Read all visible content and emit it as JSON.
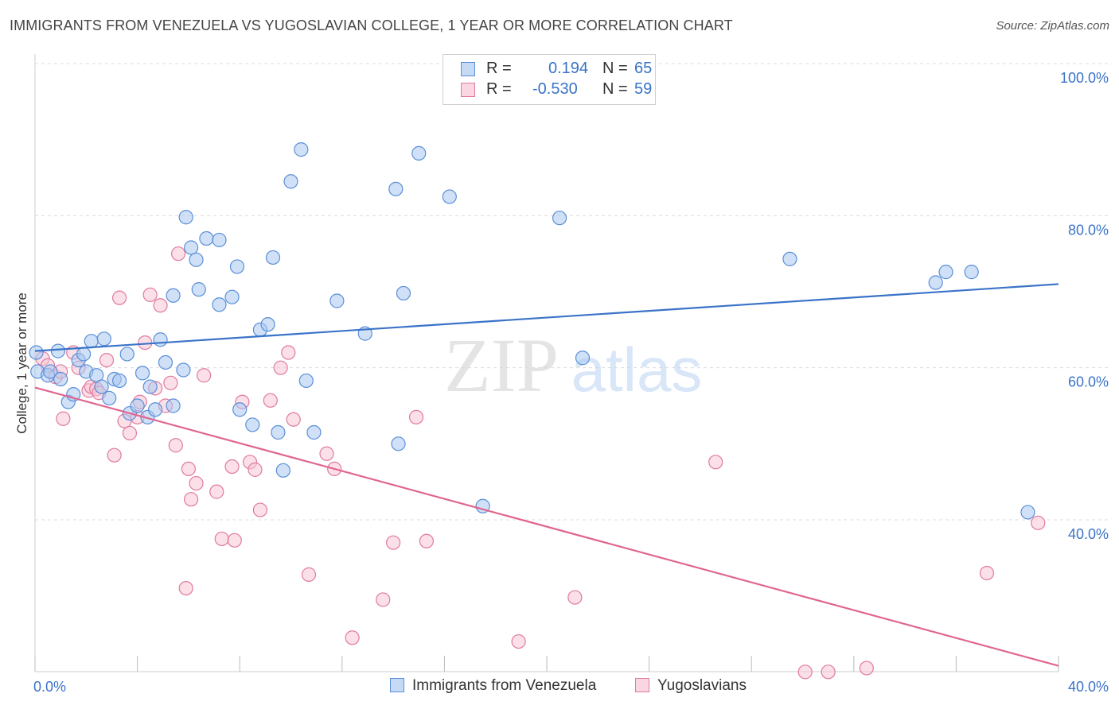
{
  "title": "IMMIGRANTS FROM VENEZUELA VS YUGOSLAVIAN COLLEGE, 1 YEAR OR MORE CORRELATION CHART",
  "source": "Source: ZipAtlas.com",
  "watermark": {
    "zip": "ZIP",
    "atlas": "atlas"
  },
  "legend": {
    "rows": [
      {
        "r_label": "R =",
        "r_value": "0.194",
        "n_label": "N =",
        "n_value": "65",
        "color": "#a9c8f0",
        "border": "#5a8fd8"
      },
      {
        "r_label": "R =",
        "r_value": "-0.530",
        "n_label": "N =",
        "n_value": "59",
        "color": "#f7c6d6",
        "border": "#e07aa0"
      }
    ]
  },
  "chart_data": {
    "type": "scatter",
    "title": "IMMIGRANTS FROM VENEZUELA VS YUGOSLAVIAN COLLEGE, 1 YEAR OR MORE CORRELATION CHART",
    "xlabel": "",
    "ylabel": "College, 1 year or more",
    "xlim": [
      0,
      40
    ],
    "ylim": [
      20,
      100
    ],
    "x_tick_labels": [
      "0.0%",
      "40.0%"
    ],
    "y_ticks": [
      40,
      60,
      80,
      100
    ],
    "y_tick_labels": [
      "40.0%",
      "60.0%",
      "80.0%",
      "100.0%"
    ],
    "grid": true,
    "legend_position": "top-center",
    "series": [
      {
        "name": "Immigrants from Venezuela",
        "color": "#a9c8f0",
        "stroke": "#5a8fd8",
        "line_color": "#3a73c8",
        "trend": {
          "x": [
            0,
            40
          ],
          "y": [
            62.2,
            71.0
          ]
        },
        "points": [
          [
            0.05,
            62.0
          ],
          [
            0.1,
            59.5
          ],
          [
            0.5,
            59.0
          ],
          [
            0.6,
            59.5
          ],
          [
            0.9,
            62.2
          ],
          [
            1.0,
            58.5
          ],
          [
            1.3,
            55.5
          ],
          [
            1.5,
            56.5
          ],
          [
            1.7,
            61.0
          ],
          [
            1.9,
            61.8
          ],
          [
            2.0,
            59.5
          ],
          [
            2.2,
            63.5
          ],
          [
            2.4,
            59.0
          ],
          [
            2.6,
            57.5
          ],
          [
            2.7,
            63.8
          ],
          [
            2.9,
            56.0
          ],
          [
            3.1,
            58.5
          ],
          [
            3.3,
            58.3
          ],
          [
            3.6,
            61.8
          ],
          [
            3.7,
            54.0
          ],
          [
            4.0,
            55.0
          ],
          [
            4.2,
            59.3
          ],
          [
            4.4,
            53.5
          ],
          [
            4.5,
            57.5
          ],
          [
            4.7,
            54.5
          ],
          [
            4.9,
            63.7
          ],
          [
            5.1,
            60.7
          ],
          [
            5.4,
            69.5
          ],
          [
            5.4,
            55.0
          ],
          [
            5.8,
            59.7
          ],
          [
            5.9,
            79.8
          ],
          [
            6.1,
            75.8
          ],
          [
            6.3,
            74.2
          ],
          [
            6.4,
            70.3
          ],
          [
            6.7,
            77.0
          ],
          [
            7.2,
            76.8
          ],
          [
            7.2,
            68.3
          ],
          [
            7.7,
            69.3
          ],
          [
            7.9,
            73.3
          ],
          [
            8.0,
            54.5
          ],
          [
            8.5,
            52.5
          ],
          [
            8.8,
            65.0
          ],
          [
            9.1,
            65.7
          ],
          [
            9.3,
            74.5
          ],
          [
            9.5,
            51.5
          ],
          [
            9.7,
            46.5
          ],
          [
            10.0,
            84.5
          ],
          [
            10.4,
            88.7
          ],
          [
            10.6,
            58.3
          ],
          [
            10.9,
            51.5
          ],
          [
            11.8,
            68.8
          ],
          [
            12.9,
            64.5
          ],
          [
            14.1,
            83.5
          ],
          [
            14.2,
            50.0
          ],
          [
            14.4,
            69.8
          ],
          [
            15.0,
            88.2
          ],
          [
            16.2,
            82.5
          ],
          [
            17.5,
            41.8
          ],
          [
            20.5,
            79.7
          ],
          [
            21.4,
            61.3
          ],
          [
            29.5,
            74.3
          ],
          [
            35.2,
            71.2
          ],
          [
            35.6,
            72.6
          ],
          [
            36.6,
            72.6
          ],
          [
            38.8,
            41.0
          ]
        ]
      },
      {
        "name": "Yugoslavians",
        "color": "#f7c6d6",
        "stroke": "#e07aa0",
        "line_color": "#e0668f",
        "trend": {
          "x": [
            0,
            40
          ],
          "y": [
            57.4,
            20.8
          ]
        },
        "points": [
          [
            0.3,
            61.2
          ],
          [
            0.5,
            60.3
          ],
          [
            0.8,
            58.8
          ],
          [
            1.0,
            59.5
          ],
          [
            1.1,
            53.3
          ],
          [
            1.5,
            62.0
          ],
          [
            1.7,
            60.0
          ],
          [
            2.1,
            57.0
          ],
          [
            2.2,
            57.5
          ],
          [
            2.4,
            57.2
          ],
          [
            2.5,
            56.7
          ],
          [
            2.8,
            61.0
          ],
          [
            3.1,
            48.5
          ],
          [
            3.3,
            69.2
          ],
          [
            3.5,
            53.0
          ],
          [
            3.7,
            51.4
          ],
          [
            4.0,
            53.5
          ],
          [
            4.1,
            55.5
          ],
          [
            4.3,
            63.3
          ],
          [
            4.5,
            69.6
          ],
          [
            4.7,
            57.3
          ],
          [
            4.9,
            68.2
          ],
          [
            5.1,
            55.0
          ],
          [
            5.3,
            58.0
          ],
          [
            5.5,
            49.8
          ],
          [
            5.6,
            75.0
          ],
          [
            5.9,
            31.0
          ],
          [
            6.0,
            46.7
          ],
          [
            6.1,
            42.7
          ],
          [
            6.3,
            44.8
          ],
          [
            6.6,
            59.0
          ],
          [
            7.1,
            43.7
          ],
          [
            7.3,
            37.5
          ],
          [
            7.7,
            47.0
          ],
          [
            7.8,
            37.3
          ],
          [
            8.1,
            55.5
          ],
          [
            8.4,
            47.6
          ],
          [
            8.6,
            46.6
          ],
          [
            8.8,
            41.3
          ],
          [
            9.2,
            55.7
          ],
          [
            9.6,
            60.0
          ],
          [
            9.9,
            62.0
          ],
          [
            10.1,
            53.2
          ],
          [
            10.7,
            32.8
          ],
          [
            11.4,
            48.7
          ],
          [
            11.7,
            46.7
          ],
          [
            12.4,
            24.5
          ],
          [
            13.6,
            29.5
          ],
          [
            14.0,
            37.0
          ],
          [
            14.9,
            53.5
          ],
          [
            15.3,
            37.2
          ],
          [
            18.9,
            24.0
          ],
          [
            21.1,
            29.8
          ],
          [
            26.6,
            47.6
          ],
          [
            30.1,
            20.0
          ],
          [
            31.0,
            20.0
          ],
          [
            32.5,
            20.5
          ],
          [
            37.2,
            33.0
          ],
          [
            39.2,
            39.6
          ]
        ]
      }
    ]
  },
  "legend_bottom": [
    {
      "label": "Immigrants from Venezuela",
      "color": "#a9c8f0",
      "border": "#5a8fd8"
    },
    {
      "label": "Yugoslavians",
      "color": "#f7c6d6",
      "border": "#e07aa0"
    }
  ]
}
